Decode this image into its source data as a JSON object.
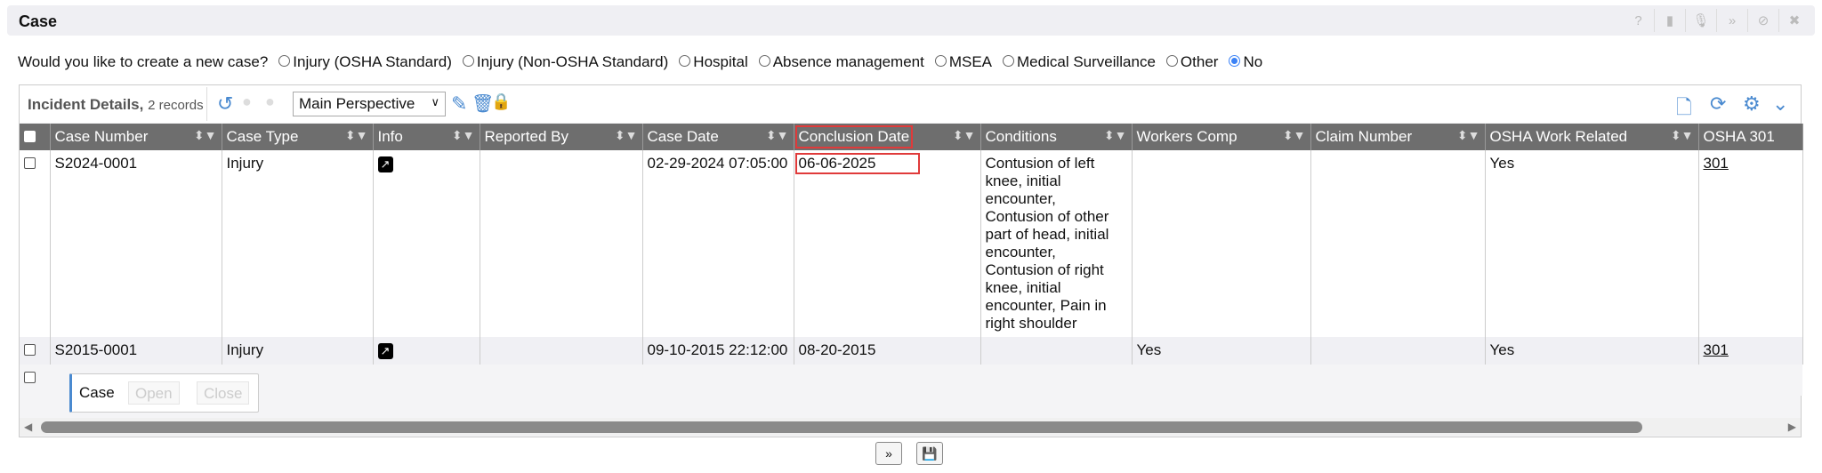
{
  "window": {
    "title": "Case",
    "icons": [
      "help-icon",
      "book-icon",
      "microphone-icon",
      "collapse-icon",
      "cancel-icon",
      "close-icon"
    ]
  },
  "question": {
    "label": "Would you like to create a new case?",
    "options": [
      {
        "label": "Injury (OSHA Standard)",
        "selected": false
      },
      {
        "label": "Injury (Non-OSHA Standard)",
        "selected": false
      },
      {
        "label": "Hospital",
        "selected": false
      },
      {
        "label": "Absence management",
        "selected": false
      },
      {
        "label": "MSEA",
        "selected": false
      },
      {
        "label": "Medical Surveillance",
        "selected": false
      },
      {
        "label": "Other",
        "selected": false
      },
      {
        "label": "No",
        "selected": true
      }
    ]
  },
  "grid": {
    "title": "Incident Details,",
    "count": "2 records",
    "perspective": "Main Perspective",
    "columns": [
      "Case Number",
      "Case Type",
      "Info",
      "Reported By",
      "Case Date",
      "Conclusion Date",
      "Conditions",
      "Workers Comp",
      "Claim Number",
      "OSHA Work Related",
      "OSHA 301"
    ],
    "rows": [
      [
        "S2024-0001",
        "Injury",
        "",
        "",
        "02-29-2024 07:05:00",
        "06-06-2025",
        "Contusion of left knee, initial encounter, Contusion of other part of head, initial encounter, Contusion of right knee, initial encounter, Pain in right shoulder",
        "",
        "",
        "Yes",
        "301"
      ],
      [
        "S2015-0001",
        "Injury",
        "",
        "",
        "09-10-2015 22:12:00",
        "08-20-2015",
        "",
        "Yes",
        "",
        "Yes",
        "301"
      ]
    ],
    "case_panel": {
      "label": "Case",
      "open": "Open",
      "close": "Close"
    }
  },
  "colors": {
    "accent": "#4a8ad0",
    "header": "#6e6e6e",
    "highlight": "#e03a3a",
    "radio": "#3b82f6"
  }
}
